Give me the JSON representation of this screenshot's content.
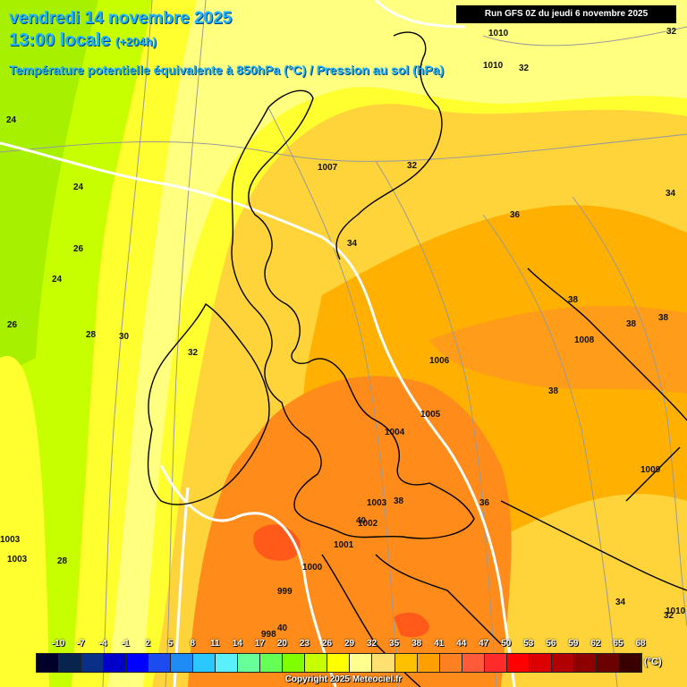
{
  "header": {
    "title": "vendredi 14 novembre 2025",
    "time_main": "13:00 locale",
    "time_offset": "(+204h)",
    "subtitle": "Température potentielle équivalente à 850hPa (°C) / Pression au sol (hPa)",
    "run_info": "Run GFS 0Z du jeudi 6 novembre 2025"
  },
  "map": {
    "background_colors": {
      "green": "#a6f000",
      "light_green": "#c8ff00",
      "yellow": "#ffff30",
      "pale_yellow": "#ffff80",
      "gold": "#ffd43a",
      "orange": "#ffb000",
      "dark_orange": "#ff8c1a",
      "red_orange": "#ff5a1a"
    },
    "pressure_labels": [
      "1010",
      "1010",
      "1007",
      "1008",
      "1006",
      "1005",
      "1004",
      "1003",
      "1002",
      "1001",
      "1000",
      "999",
      "998",
      "1009",
      "1003",
      "1003",
      "1010"
    ],
    "temperature_labels": [
      "32",
      "32",
      "32",
      "24",
      "24",
      "26",
      "24",
      "26",
      "28",
      "30",
      "32",
      "34",
      "36",
      "34",
      "38",
      "38",
      "38",
      "38",
      "38",
      "36",
      "40",
      "28",
      "40",
      "34",
      "32"
    ]
  },
  "legend": {
    "ticks": [
      "-10",
      "-7",
      "-4",
      "-1",
      "2",
      "5",
      "8",
      "11",
      "14",
      "17",
      "20",
      "23",
      "26",
      "29",
      "32",
      "35",
      "38",
      "41",
      "44",
      "47",
      "50",
      "53",
      "56",
      "59",
      "62",
      "65",
      "68"
    ],
    "colors": [
      "#00002a",
      "#06244d",
      "#0a2f86",
      "#0000c8",
      "#0000ff",
      "#1c4cf0",
      "#1f8cf5",
      "#2ac8ff",
      "#5af0ff",
      "#66ff99",
      "#66ff55",
      "#80ff00",
      "#c8ff00",
      "#ffff00",
      "#ffff90",
      "#ffe070",
      "#ffc000",
      "#ffa000",
      "#ff8020",
      "#ff5a3a",
      "#ff2a2a",
      "#ff0000",
      "#dd0000",
      "#b00000",
      "#8c0000",
      "#6a0000",
      "#3a0000"
    ],
    "unit": "(°C)",
    "copyright": "Copyright 2025 Meteociel.fr"
  }
}
